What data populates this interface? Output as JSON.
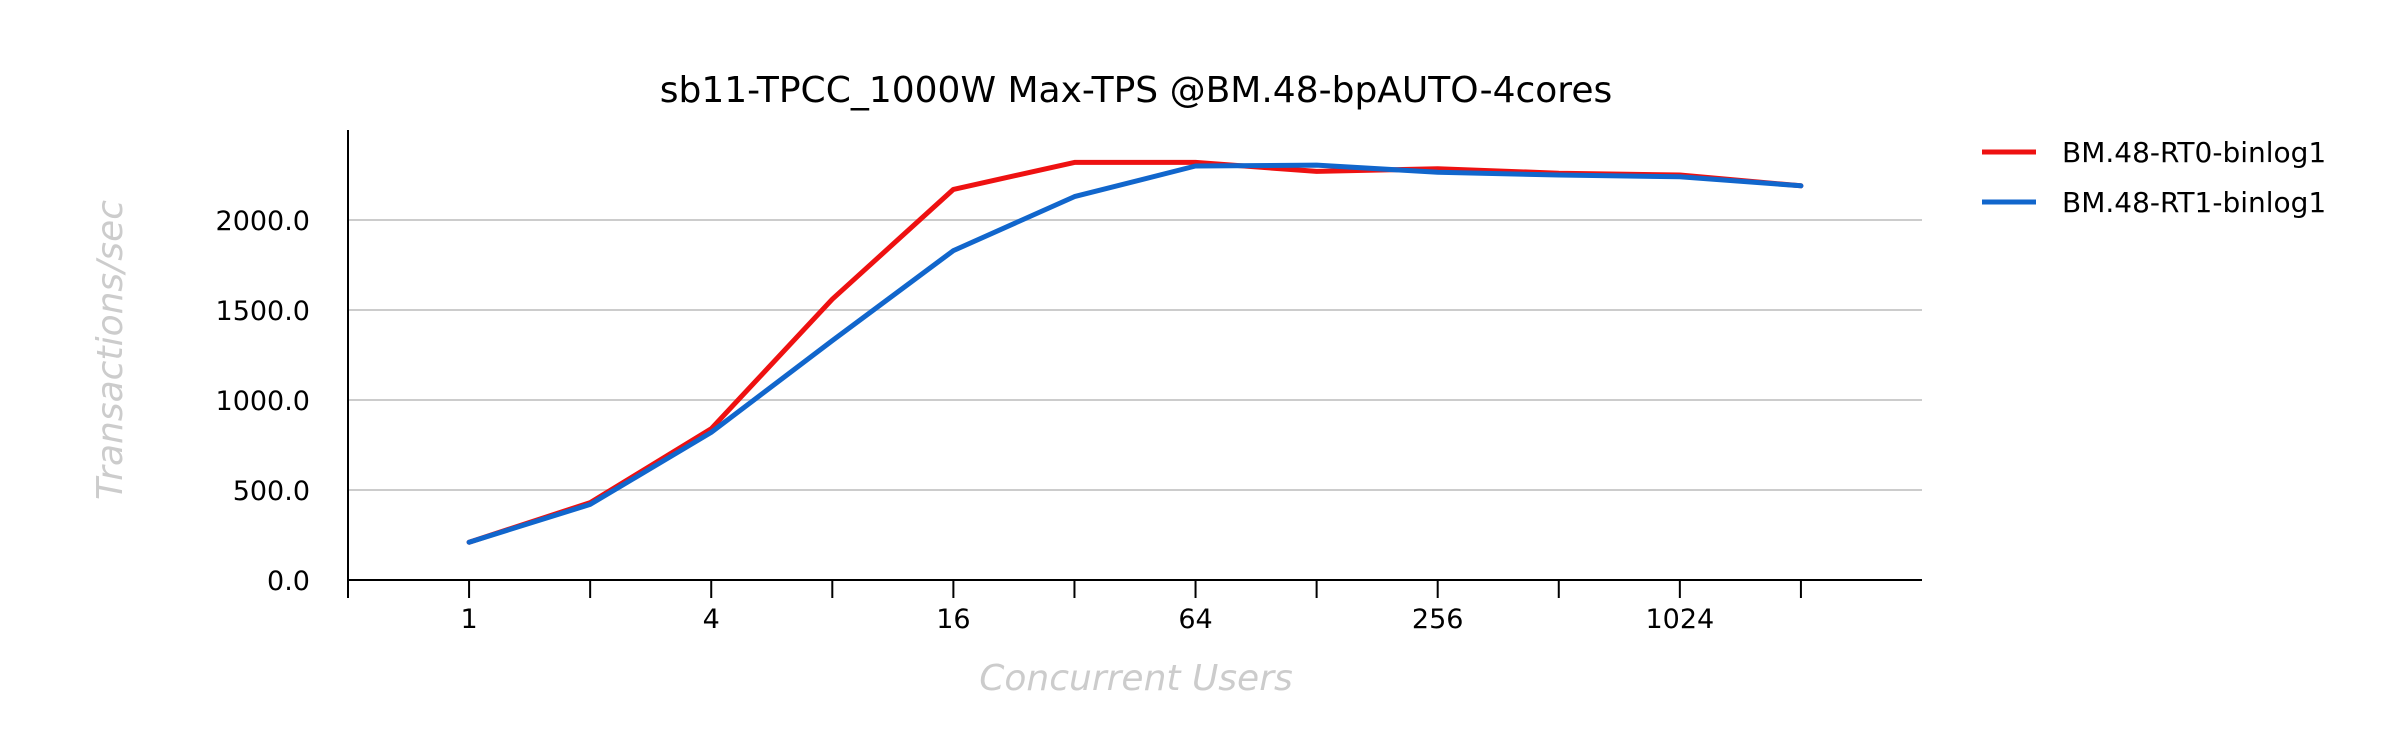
{
  "chart_data": {
    "type": "line",
    "title": "sb11-TPCC_1000W Max-TPS @BM.48-bpAUTO-4cores",
    "xlabel": "Concurrent Users",
    "ylabel": "Transactions/sec",
    "x": [
      1,
      2,
      4,
      8,
      16,
      32,
      64,
      128,
      256,
      512,
      1024,
      2048
    ],
    "x_scale": "log2",
    "x_tick_labels": [
      "1",
      "4",
      "16",
      "64",
      "256",
      "1024"
    ],
    "x_tick_label_values": [
      1,
      4,
      16,
      64,
      256,
      1024
    ],
    "x_tick_marks": [
      0.5,
      1,
      2,
      4,
      8,
      16,
      32,
      64,
      128,
      256,
      512,
      1024,
      2048
    ],
    "xlim": [
      0.5,
      4096
    ],
    "ylim": [
      0,
      2500
    ],
    "y_ticks": [
      0,
      500,
      1000,
      1500,
      2000
    ],
    "y_tick_labels": [
      "0.0",
      "500.0",
      "1000.0",
      "1500.0",
      "2000.0"
    ],
    "grid": "horizontal",
    "legend_position": "right",
    "series": [
      {
        "name": "BM.48-RT0-binlog1",
        "color": "#ee1111",
        "values": [
          210,
          430,
          840,
          1560,
          2170,
          2320,
          2320,
          2270,
          2285,
          2260,
          2250,
          2190
        ]
      },
      {
        "name": "BM.48-RT1-binlog1",
        "color": "#1166cc",
        "values": [
          210,
          420,
          820,
          1330,
          1830,
          2130,
          2300,
          2305,
          2265,
          2250,
          2240,
          2190
        ]
      }
    ]
  }
}
